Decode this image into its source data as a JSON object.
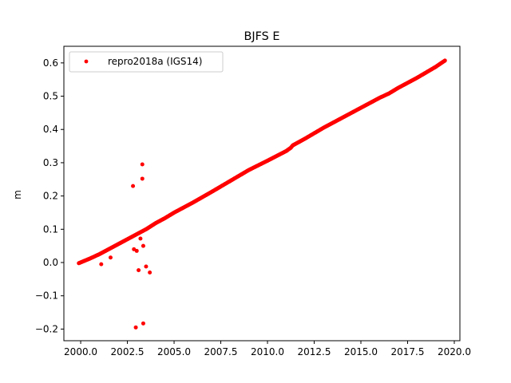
{
  "chart_data": {
    "type": "scatter",
    "title": "BJFS E",
    "xlabel": "",
    "ylabel": "m",
    "xlim": [
      1999.1,
      2020.3
    ],
    "ylim": [
      -0.235,
      0.65
    ],
    "xticks": [
      2000.0,
      2002.5,
      2005.0,
      2007.5,
      2010.0,
      2012.5,
      2015.0,
      2017.5,
      2020.0
    ],
    "xtick_labels": [
      "2000.0",
      "2002.5",
      "2005.0",
      "2007.5",
      "2010.0",
      "2012.5",
      "2015.0",
      "2017.5",
      "2020.0"
    ],
    "yticks": [
      -0.2,
      -0.1,
      0.0,
      0.1,
      0.2,
      0.3,
      0.4,
      0.5,
      0.6
    ],
    "ytick_labels": [
      "−0.2",
      "−0.1",
      "0.0",
      "0.1",
      "0.2",
      "0.3",
      "0.4",
      "0.5",
      "0.6"
    ],
    "grid": false,
    "legend_position": "top-left",
    "series": [
      {
        "name": "repro2018a (IGS14)",
        "color": "#ff0000",
        "marker": "circle",
        "trend": [
          [
            1999.9,
            -0.002
          ],
          [
            2000.2,
            0.005
          ],
          [
            2000.5,
            0.012
          ],
          [
            2001.0,
            0.025
          ],
          [
            2001.5,
            0.04
          ],
          [
            2002.0,
            0.055
          ],
          [
            2002.5,
            0.07
          ],
          [
            2003.0,
            0.085
          ],
          [
            2003.5,
            0.1
          ],
          [
            2004.0,
            0.118
          ],
          [
            2004.5,
            0.133
          ],
          [
            2005.0,
            0.15
          ],
          [
            2006.0,
            0.18
          ],
          [
            2007.0,
            0.212
          ],
          [
            2008.0,
            0.245
          ],
          [
            2009.0,
            0.278
          ],
          [
            2010.0,
            0.306
          ],
          [
            2011.0,
            0.335
          ],
          [
            2011.25,
            0.345
          ],
          [
            2011.35,
            0.352
          ],
          [
            2012.0,
            0.372
          ],
          [
            2013.0,
            0.405
          ],
          [
            2014.0,
            0.435
          ],
          [
            2015.0,
            0.465
          ],
          [
            2016.0,
            0.495
          ],
          [
            2016.5,
            0.508
          ],
          [
            2017.0,
            0.525
          ],
          [
            2018.0,
            0.555
          ],
          [
            2019.0,
            0.588
          ],
          [
            2019.5,
            0.607
          ]
        ],
        "outliers": [
          [
            2001.1,
            -0.005
          ],
          [
            2001.6,
            0.015
          ],
          [
            2002.8,
            0.23
          ],
          [
            2002.85,
            0.04
          ],
          [
            2002.95,
            -0.195
          ],
          [
            2003.0,
            0.035
          ],
          [
            2003.1,
            -0.023
          ],
          [
            2003.2,
            0.072
          ],
          [
            2003.3,
            0.295
          ],
          [
            2003.3,
            0.252
          ],
          [
            2003.35,
            0.05
          ],
          [
            2003.35,
            -0.183
          ],
          [
            2003.5,
            -0.012
          ],
          [
            2003.7,
            -0.03
          ]
        ]
      }
    ]
  }
}
